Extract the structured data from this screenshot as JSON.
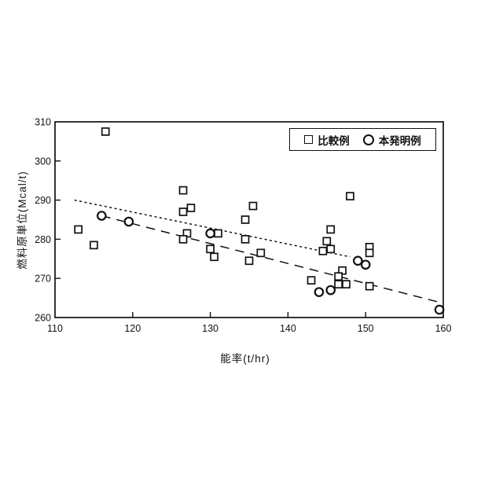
{
  "page": {
    "background": "#ffffff",
    "ink_color": "#111111"
  },
  "chart_data": {
    "type": "scatter",
    "title": "",
    "xlabel": "能率(t/hr)",
    "ylabel": "燃料原単位(Mcal/t)",
    "xlim": [
      110,
      160
    ],
    "ylim": [
      260,
      310
    ],
    "x_ticks": [
      110,
      120,
      130,
      140,
      150,
      160
    ],
    "y_ticks": [
      260,
      270,
      280,
      290,
      300,
      310
    ],
    "grid": false,
    "legend_position": "top-right-inside",
    "series": [
      {
        "name": "比較例",
        "marker": "square",
        "points": [
          [
            116.5,
            307.5
          ],
          [
            113,
            282.5
          ],
          [
            115,
            278.5
          ],
          [
            126.5,
            292.5
          ],
          [
            127.5,
            288
          ],
          [
            126.5,
            287
          ],
          [
            127,
            281.5
          ],
          [
            126.5,
            280
          ],
          [
            131,
            281.5
          ],
          [
            130,
            277.5
          ],
          [
            130.5,
            275.5
          ],
          [
            135.5,
            288.5
          ],
          [
            134.5,
            285
          ],
          [
            134.5,
            280
          ],
          [
            136.5,
            276.5
          ],
          [
            135,
            274.5
          ],
          [
            148,
            291
          ],
          [
            145.5,
            282.5
          ],
          [
            145,
            279.5
          ],
          [
            144.5,
            277
          ],
          [
            145.5,
            277.5
          ],
          [
            150.5,
            278
          ],
          [
            150.5,
            276.5
          ],
          [
            147,
            272
          ],
          [
            146.5,
            270.5
          ],
          [
            143,
            269.5
          ],
          [
            146.5,
            268.5
          ],
          [
            147.5,
            268.5
          ],
          [
            150.5,
            268
          ]
        ]
      },
      {
        "name": "本発明例",
        "marker": "circle",
        "points": [
          [
            116,
            286
          ],
          [
            119.5,
            284.5
          ],
          [
            130,
            281.5
          ],
          [
            149,
            274.5
          ],
          [
            150,
            273.5
          ],
          [
            144,
            266.5
          ],
          [
            145.5,
            267
          ],
          [
            159.5,
            262
          ]
        ]
      }
    ],
    "trend_lines": [
      {
        "series": "比較例",
        "style": "dotted",
        "start": [
          112.5,
          290
        ],
        "end": [
          148,
          275.5
        ]
      },
      {
        "series": "本発明例",
        "style": "dashed",
        "start": [
          116,
          286
        ],
        "end": [
          159.7,
          263.8
        ]
      }
    ]
  },
  "legend": {
    "items": [
      {
        "label": "比較例",
        "marker": "square"
      },
      {
        "label": "本発明例",
        "marker": "circle"
      }
    ]
  }
}
